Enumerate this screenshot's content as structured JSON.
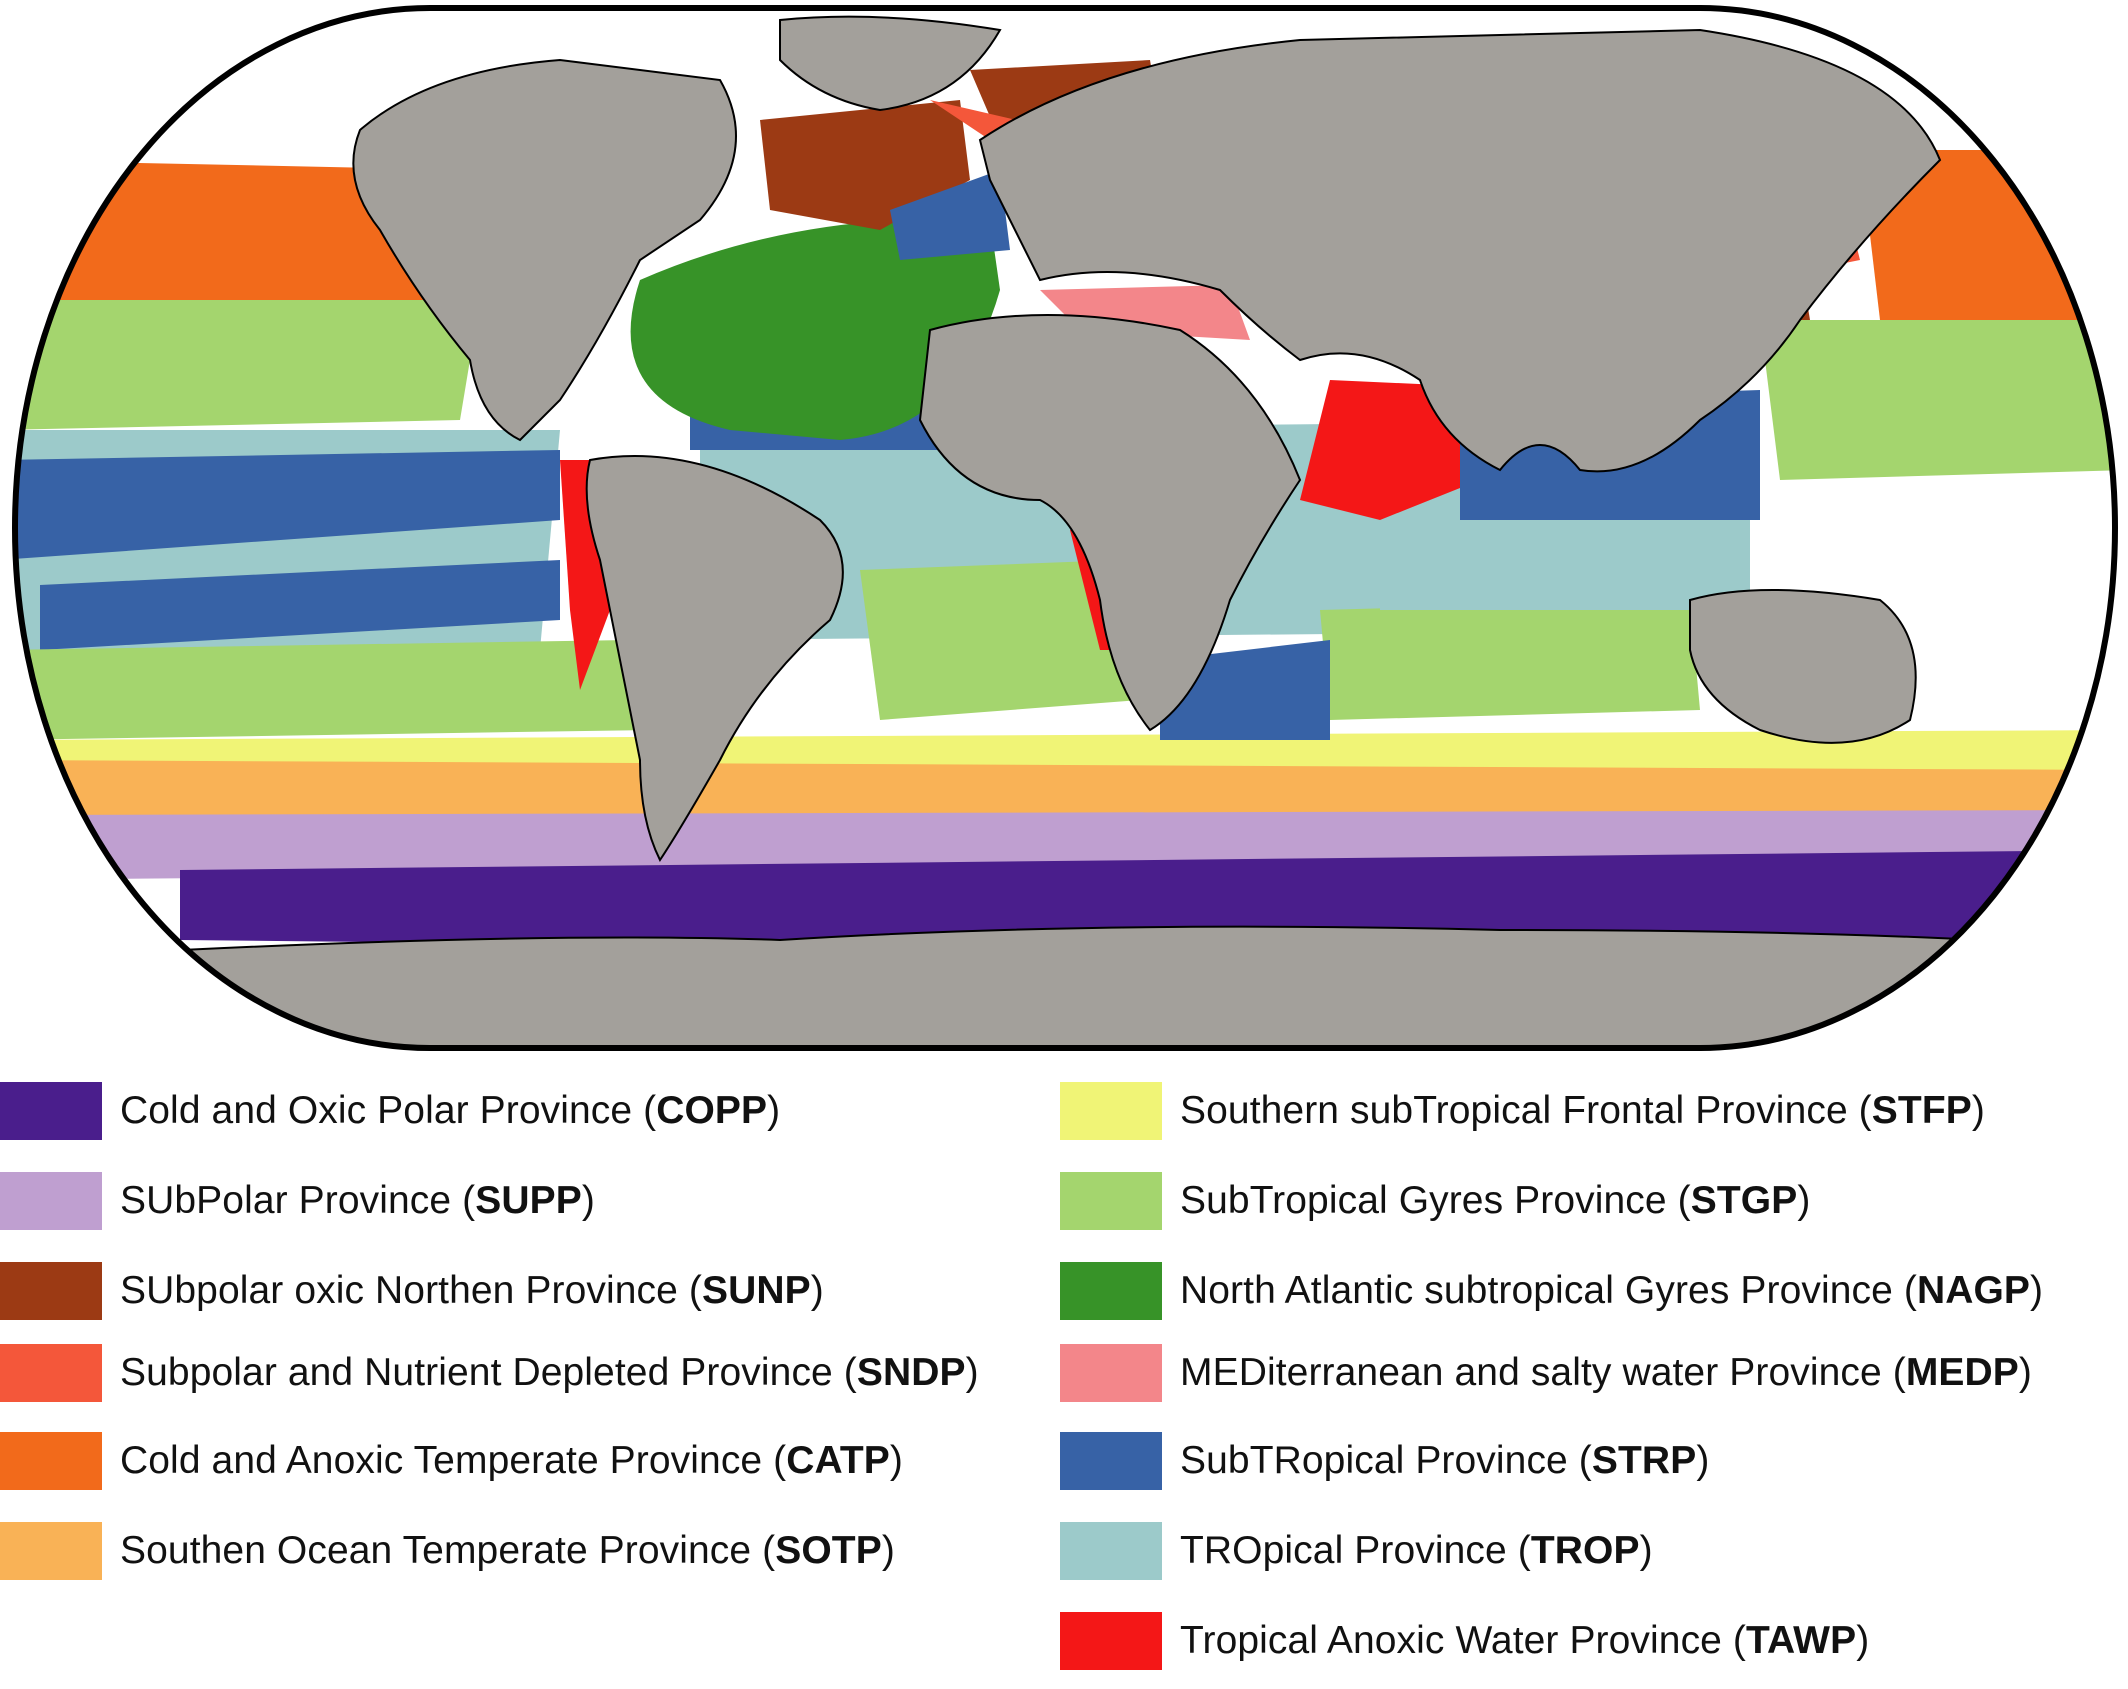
{
  "map": {
    "colors": {
      "ocean_white": "#ffffff",
      "land": "#a3a09b",
      "outline": "#000000"
    }
  },
  "legend": {
    "left": [
      {
        "name": "Cold and Oxic Polar Province",
        "code": "COPP",
        "color": "#4a1e8c"
      },
      {
        "name": "SUbPolar Province",
        "code": "SUPP",
        "color": "#bf9fd0"
      },
      {
        "name": "SUbpolar oxic Northen Province",
        "code": "SUNP",
        "color": "#9c3a14"
      },
      {
        "name": "Subpolar and Nutrient Depleted Province",
        "code": "SNDP",
        "color": "#f4573a"
      },
      {
        "name": "Cold and Anoxic Temperate Province",
        "code": "CATP",
        "color": "#f26a1b"
      },
      {
        "name": "Southen Ocean Temperate Province",
        "code": "SOTP",
        "color": "#f9b256"
      }
    ],
    "right": [
      {
        "name": "Southern subTropical Frontal Province",
        "code": "STFP",
        "color": "#f0f476"
      },
      {
        "name": "SubTropical Gyres Province",
        "code": "STGP",
        "color": "#a4d56e"
      },
      {
        "name": "North Atlantic subtropical Gyres Province",
        "code": "NAGP",
        "color": "#379328"
      },
      {
        "name": "MEDiterranean and salty water Province",
        "code": "MEDP",
        "color": "#f3868a"
      },
      {
        "name": "SubTRopical Province",
        "code": "STRP",
        "color": "#3762a6"
      },
      {
        "name": "TROpical Province",
        "code": "TROP",
        "color": "#9ccaca"
      },
      {
        "name": "Tropical Anoxic Water Province",
        "code": "TAWP",
        "color": "#f41717"
      }
    ]
  }
}
